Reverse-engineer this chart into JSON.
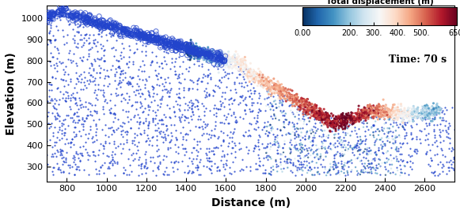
{
  "title": "",
  "xlabel": "Distance (m)",
  "ylabel": "Elevation (m)",
  "colorbar_label": "Total displacement (m)",
  "colorbar_ticks": [
    0.0,
    200.0,
    300.0,
    400.0,
    500.0,
    650.0
  ],
  "colorbar_ticklabels": [
    "0.00",
    "200.",
    "300.",
    "400.",
    "500.",
    "650."
  ],
  "vmin": 0.0,
  "vmax": 650.0,
  "time_label": "Time: 70 s",
  "xlim": [
    700,
    2750
  ],
  "ylim": [
    230,
    1060
  ],
  "xticks": [
    800,
    1000,
    1200,
    1400,
    1600,
    1800,
    2000,
    2200,
    2400,
    2600
  ],
  "yticks": [
    300,
    400,
    500,
    600,
    700,
    800,
    900,
    1000
  ],
  "seed": 42,
  "n_background": 3500,
  "n_slide": 800,
  "background_color": "#2244cc",
  "figsize": [
    5.81,
    2.71
  ],
  "dpi": 100
}
